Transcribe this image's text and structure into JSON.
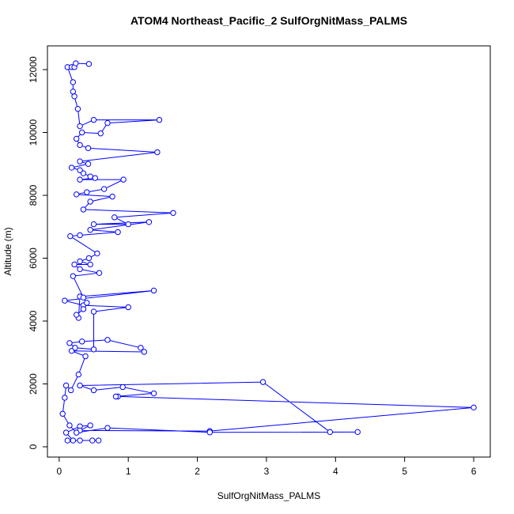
{
  "chart_data": {
    "type": "line",
    "title": "ATOM4 Northeast_Pacific_2 SulfOrgNitMass_PALMS",
    "x_label": "SulfOrgNitMass_PALMS",
    "y_label": "Altitude (m)",
    "xlim": [
      -0.17,
      6.24
    ],
    "ylim": [
      -327,
      12755
    ],
    "xticks": [
      0,
      1,
      2,
      3,
      4,
      5,
      6
    ],
    "yticks": [
      0,
      2000,
      4000,
      6000,
      8000,
      10000,
      12000
    ],
    "x": [
      0.12,
      0.57,
      0.48,
      0.3,
      0.2,
      0.1,
      0.3,
      0.45,
      0.3,
      2.18,
      6.0,
      0.85,
      0.82,
      1.37,
      0.92,
      0.5,
      0.3,
      2.95,
      3.92,
      4.32,
      2.18,
      0.7,
      0.25,
      0.15,
      0.05,
      0.08,
      0.1,
      0.17,
      0.28,
      0.38,
      0.18,
      1.23,
      1.18,
      0.7,
      0.33,
      0.15,
      0.23,
      0.5,
      0.5,
      1.0,
      0.35,
      0.08,
      1.37,
      0.3,
      0.28,
      0.25,
      0.35,
      0.4,
      0.35,
      0.2,
      0.58,
      0.3,
      0.22,
      0.45,
      0.3,
      0.43,
      0.55,
      0.16,
      0.3,
      0.85,
      0.45,
      1.3,
      0.5,
      1.0,
      0.8,
      1.65,
      0.35,
      0.45,
      0.77,
      0.25,
      0.4,
      0.65,
      0.93,
      0.3,
      0.52,
      0.45,
      0.35,
      0.3,
      0.18,
      0.42,
      0.3,
      1.42,
      0.42,
      0.3,
      0.25,
      0.33,
      0.6,
      0.7,
      1.45,
      0.5,
      0.3,
      0.27,
      0.22,
      0.2,
      0.2,
      0.12,
      0.18,
      0.22,
      0.24,
      0.43
    ],
    "series": [
      {
        "color": "#0000ff",
        "values": [
          200,
          200,
          200,
          200,
          200,
          450,
          650,
          680,
          520,
          500,
          1250,
          1600,
          1600,
          1700,
          1900,
          1800,
          1950,
          2060,
          470,
          470,
          460,
          600,
          450,
          680,
          1050,
          1560,
          1950,
          1800,
          2300,
          2880,
          3050,
          3020,
          3150,
          3400,
          3350,
          3300,
          3150,
          3100,
          4300,
          4440,
          4500,
          4650,
          4970,
          4780,
          4100,
          4200,
          4380,
          4580,
          4750,
          5430,
          5530,
          5650,
          5800,
          5800,
          5900,
          6000,
          6150,
          6700,
          6730,
          6830,
          6900,
          7150,
          7080,
          7080,
          7300,
          7440,
          7550,
          7800,
          7960,
          8030,
          8100,
          8200,
          8500,
          8500,
          8550,
          8600,
          8700,
          8800,
          8880,
          9000,
          9080,
          9370,
          9500,
          9600,
          9800,
          10000,
          9970,
          10300,
          10400,
          10400,
          10200,
          10750,
          11150,
          11300,
          11600,
          12080,
          12080,
          12080,
          12200,
          12180
        ]
      }
    ]
  }
}
